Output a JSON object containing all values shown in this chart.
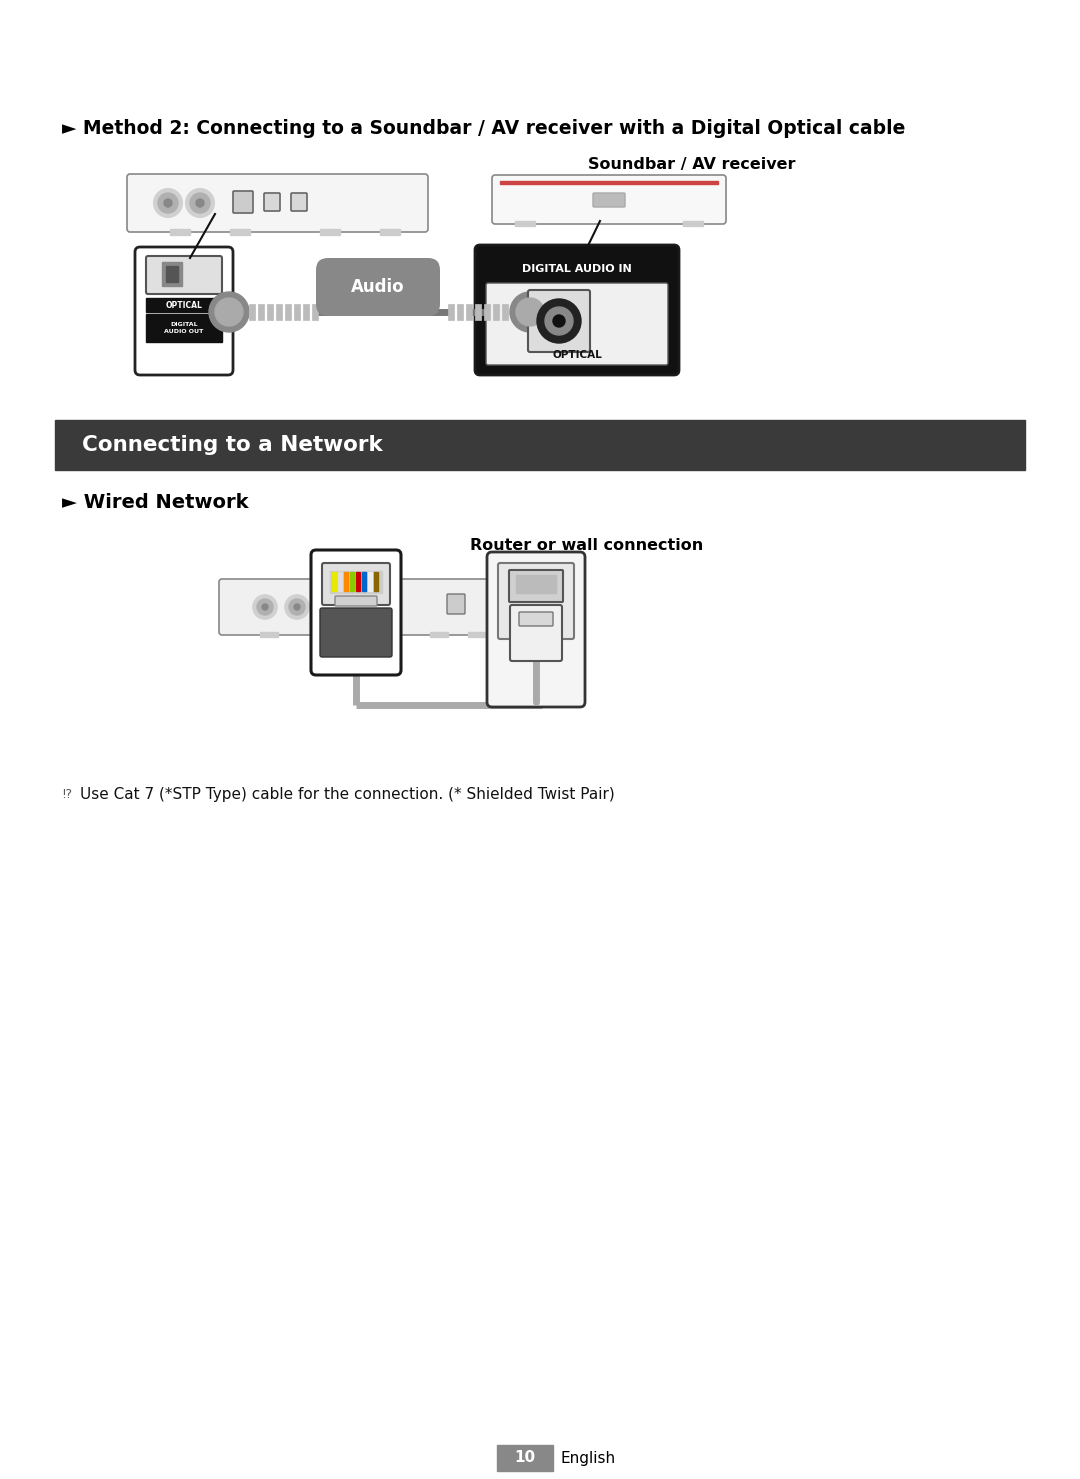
{
  "bg_color": "#ffffff",
  "method2_title": "► Method 2: Connecting to a Soundbar / AV receiver with a Digital Optical cable",
  "soundbar_label": "Soundbar / AV receiver",
  "audio_label": "Audio",
  "digital_audio_in_label": "DIGITAL AUDIO IN",
  "optical_label_right": "OPTICAL",
  "optical_label_left": "OPTICAL",
  "digital_audio_out_label": "DIGITAL\nAUDIO OUT",
  "section_header": "Connecting to a Network",
  "section_header_bg": "#3a3a3a",
  "section_header_color": "#ffffff",
  "wired_network_title": "► Wired Network",
  "router_label": "Router or wall connection",
  "note_symbol": "⁉",
  "note_text": "Use Cat 7 (*STP Type) cable for the connection. (* Shielded Twist Pair)",
  "page_number": "10",
  "page_label": "English",
  "page_box_color": "#888888"
}
